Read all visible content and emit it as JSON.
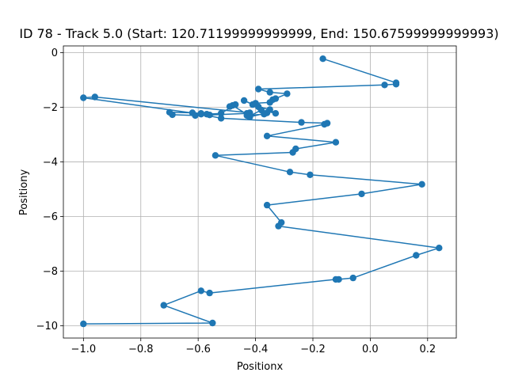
{
  "chart_data": {
    "type": "line",
    "title": "ID 78 - Track 5.0 (Start: 120.71199999999999, End: 150.67599999999993)",
    "xlabel": "Positionx",
    "ylabel": "Positiony",
    "xlim": [
      -1.07,
      0.3
    ],
    "ylim": [
      -10.45,
      0.25
    ],
    "xticks": [
      -1.0,
      -0.8,
      -0.6,
      -0.4,
      -0.2,
      0.0,
      0.2
    ],
    "xtick_labels": [
      "−1.0",
      "−0.8",
      "−0.6",
      "−0.4",
      "−0.2",
      "0.0",
      "0.2"
    ],
    "yticks": [
      0,
      -2,
      -4,
      -6,
      -8,
      -10
    ],
    "ytick_labels": [
      "0",
      "−2",
      "−4",
      "−6",
      "−8",
      "−10"
    ],
    "grid": true,
    "color": "#1f77b4",
    "marker": "circle",
    "series": [
      {
        "x": [
          -0.165,
          0.09,
          0.09,
          0.05,
          -0.39,
          -0.35,
          -0.29,
          -0.34,
          -0.33,
          -0.35,
          -0.4,
          -0.41,
          -0.44,
          -0.39,
          -0.35,
          -0.33,
          -0.38,
          -0.42,
          -0.48,
          -0.49,
          -0.47,
          -0.52,
          -0.57,
          -0.59,
          -0.62,
          -0.7,
          -0.69,
          -0.61,
          -0.56,
          -0.43,
          -0.42,
          -0.36,
          -0.37,
          -0.43,
          -0.42,
          -0.96,
          -1.0,
          -0.59,
          -0.52,
          -0.24,
          -0.15,
          -0.16,
          -0.36,
          -0.12,
          -0.26,
          -0.27,
          -0.54,
          -0.28,
          -0.21,
          0.18,
          -0.03,
          -0.36,
          -0.31,
          -0.32,
          0.24,
          0.16,
          -0.06,
          -0.11,
          -0.12,
          -0.56,
          -0.59,
          -0.72,
          -0.55,
          -1.0
        ],
        "y": [
          -0.22,
          -1.1,
          -1.15,
          -1.18,
          -1.33,
          -1.45,
          -1.5,
          -1.72,
          -1.68,
          -1.82,
          -1.85,
          -1.9,
          -1.75,
          -1.98,
          -2.08,
          -2.22,
          -2.1,
          -2.32,
          -1.93,
          -1.97,
          -1.9,
          -2.22,
          -2.25,
          -2.22,
          -2.2,
          -2.18,
          -2.27,
          -2.3,
          -2.28,
          -2.22,
          -2.35,
          -2.2,
          -2.25,
          -2.3,
          -2.2,
          -1.62,
          -1.65,
          -2.25,
          -2.4,
          -2.55,
          -2.58,
          -2.62,
          -3.05,
          -3.28,
          -3.52,
          -3.65,
          -3.76,
          -4.37,
          -4.47,
          -4.82,
          -5.17,
          -5.58,
          -6.22,
          -6.35,
          -7.15,
          -7.42,
          -8.25,
          -8.3,
          -8.3,
          -8.8,
          -8.72,
          -9.25,
          -9.9,
          -9.93
        ]
      }
    ]
  }
}
